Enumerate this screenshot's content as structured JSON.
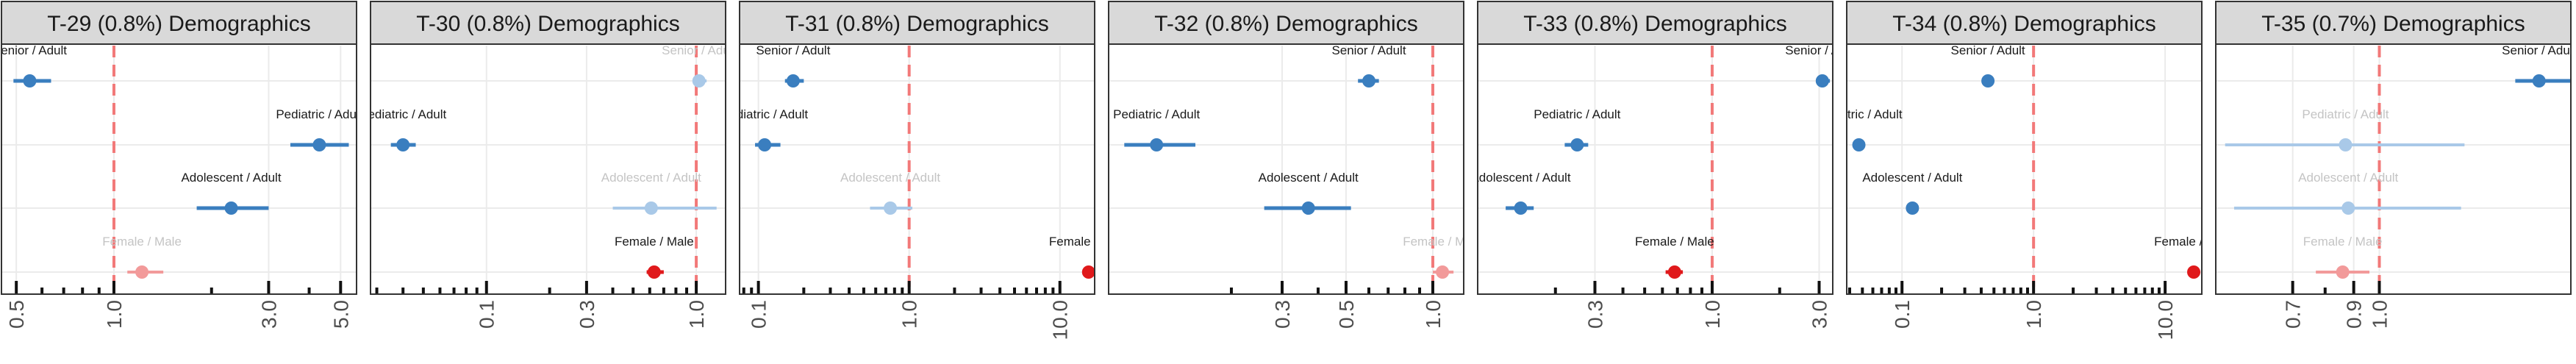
{
  "chart_data": [
    {
      "type": "scatter",
      "title": "T-29 (0.8%) Demographics",
      "x_scale": "log",
      "xlim": [
        0.45,
        5.6
      ],
      "reference_line": 1.0,
      "ticks": [
        {
          "value": 0.5,
          "label": "0.5"
        },
        {
          "value": 1.0,
          "label": "1.0"
        },
        {
          "value": 3.0,
          "label": "3.0"
        },
        {
          "value": 5.0,
          "label": "5.0"
        }
      ],
      "minor_ticks": [
        0.6,
        0.7,
        0.8,
        0.9,
        2,
        4
      ],
      "points": [
        {
          "label": "Senior / Adult",
          "est": 0.55,
          "lo": 0.49,
          "hi": 0.64,
          "color": "#3a7ebf",
          "faded": false
        },
        {
          "label": "Pediatric / Adult",
          "est": 4.3,
          "lo": 3.5,
          "hi": 5.3,
          "color": "#3a7ebf",
          "faded": false
        },
        {
          "label": "Adolescent / Adult",
          "est": 2.3,
          "lo": 1.8,
          "hi": 3.0,
          "color": "#3a7ebf",
          "faded": false
        },
        {
          "label": "Female / Male",
          "est": 1.22,
          "lo": 1.1,
          "hi": 1.42,
          "color": "#f29a9a",
          "faded": true
        }
      ]
    },
    {
      "type": "scatter",
      "title": "T-30 (0.8%) Demographics",
      "x_scale": "log",
      "xlim": [
        0.028,
        1.38
      ],
      "reference_line": 1.0,
      "ticks": [
        {
          "value": 0.1,
          "label": "0.1"
        },
        {
          "value": 0.3,
          "label": "0.3"
        },
        {
          "value": 1.0,
          "label": "1.0"
        }
      ],
      "minor_ticks": [
        0.03,
        0.04,
        0.05,
        0.06,
        0.07,
        0.08,
        0.09,
        0.2,
        0.4,
        0.5,
        0.6,
        0.7,
        0.8,
        0.9
      ],
      "points": [
        {
          "label": "Senior / Adult",
          "est": 1.03,
          "lo": 0.97,
          "hi": 1.12,
          "color": "#a9c9e8",
          "faded": true
        },
        {
          "label": "Pediatric / Adult",
          "est": 0.04,
          "lo": 0.035,
          "hi": 0.046,
          "color": "#3a7ebf",
          "faded": false
        },
        {
          "label": "Adolescent / Adult",
          "est": 0.61,
          "lo": 0.4,
          "hi": 1.25,
          "color": "#a9c9e8",
          "faded": true
        },
        {
          "label": "Female / Male",
          "est": 0.63,
          "lo": 0.58,
          "hi": 0.7,
          "color": "#e0191b",
          "faded": false
        }
      ]
    },
    {
      "type": "scatter",
      "title": "T-31 (0.8%) Demographics",
      "x_scale": "log",
      "xlim": [
        0.075,
        17
      ],
      "reference_line": 1.0,
      "ticks": [
        {
          "value": 0.1,
          "label": "0.1"
        },
        {
          "value": 1.0,
          "label": "1.0"
        },
        {
          "value": 10.0,
          "label": "10.0"
        }
      ],
      "minor_ticks": [
        0.08,
        0.09,
        0.2,
        0.3,
        0.4,
        0.5,
        0.6,
        0.7,
        0.8,
        0.9,
        2,
        3,
        4,
        5,
        6,
        7,
        8,
        9
      ],
      "points": [
        {
          "label": "Senior / Adult",
          "est": 0.17,
          "lo": 0.15,
          "hi": 0.2,
          "color": "#3a7ebf",
          "faded": false
        },
        {
          "label": "Pediatric / Adult",
          "est": 0.11,
          "lo": 0.095,
          "hi": 0.14,
          "color": "#3a7ebf",
          "faded": false
        },
        {
          "label": "Adolescent / Adult",
          "est": 0.75,
          "lo": 0.55,
          "hi": 1.05,
          "color": "#a9c9e8",
          "faded": true
        },
        {
          "label": "Female / Male",
          "est": 15.5,
          "lo": 15.5,
          "hi": 15.5,
          "color": "#e0191b",
          "faded": false
        }
      ]
    },
    {
      "type": "scatter",
      "title": "T-32 (0.8%) Demographics",
      "x_scale": "log",
      "xlim": [
        0.075,
        1.28
      ],
      "reference_line": 1.0,
      "ticks": [
        {
          "value": 0.3,
          "label": "0.3"
        },
        {
          "value": 0.5,
          "label": "0.5"
        },
        {
          "value": 1.0,
          "label": "1.0"
        }
      ],
      "minor_ticks": [
        0.2,
        0.4,
        0.6,
        0.7,
        0.8,
        0.9
      ],
      "points": [
        {
          "label": "Senior / Adult",
          "est": 0.6,
          "lo": 0.55,
          "hi": 0.65,
          "color": "#3a7ebf",
          "faded": false
        },
        {
          "label": "Pediatric / Adult",
          "est": 0.11,
          "lo": 0.085,
          "hi": 0.15,
          "color": "#3a7ebf",
          "faded": false
        },
        {
          "label": "Adolescent / Adult",
          "est": 0.37,
          "lo": 0.26,
          "hi": 0.52,
          "color": "#3a7ebf",
          "faded": false
        },
        {
          "label": "Female / Male",
          "est": 1.08,
          "lo": 1.0,
          "hi": 1.18,
          "color": "#f29a9a",
          "faded": true
        }
      ]
    },
    {
      "type": "scatter",
      "title": "T-33 (0.8%) Demographics",
      "x_scale": "log",
      "xlim": [
        0.09,
        3.45
      ],
      "reference_line": 1.0,
      "ticks": [
        {
          "value": 0.3,
          "label": "0.3"
        },
        {
          "value": 1.0,
          "label": "1.0"
        },
        {
          "value": 3.0,
          "label": "3.0"
        }
      ],
      "minor_ticks": [
        0.2,
        0.4,
        0.5,
        0.6,
        0.7,
        0.8,
        0.9,
        2
      ],
      "points": [
        {
          "label": "Senior / Adult",
          "est": 3.1,
          "lo": 2.9,
          "hi": 3.35,
          "color": "#3a7ebf",
          "faded": false
        },
        {
          "label": "Pediatric / Adult",
          "est": 0.25,
          "lo": 0.22,
          "hi": 0.28,
          "color": "#3a7ebf",
          "faded": false
        },
        {
          "label": "Adolescent / Adult",
          "est": 0.14,
          "lo": 0.12,
          "hi": 0.16,
          "color": "#3a7ebf",
          "faded": false
        },
        {
          "label": "Female / Male",
          "est": 0.68,
          "lo": 0.62,
          "hi": 0.74,
          "color": "#e0191b",
          "faded": false
        }
      ]
    },
    {
      "type": "scatter",
      "title": "T-34 (0.8%) Demographics",
      "x_scale": "log",
      "xlim": [
        0.038,
        19
      ],
      "reference_line": 1.0,
      "ticks": [
        {
          "value": 0.1,
          "label": "0.1"
        },
        {
          "value": 1.0,
          "label": "1.0"
        },
        {
          "value": 10.0,
          "label": "10.0"
        }
      ],
      "minor_ticks": [
        0.04,
        0.05,
        0.06,
        0.07,
        0.08,
        0.09,
        0.2,
        0.3,
        0.4,
        0.5,
        0.6,
        0.7,
        0.8,
        0.9,
        2,
        3,
        4,
        5,
        6,
        7,
        8,
        9
      ],
      "points": [
        {
          "label": "Senior / Adult",
          "est": 0.45,
          "lo": 0.45,
          "hi": 0.45,
          "color": "#3a7ebf",
          "faded": false
        },
        {
          "label": "Pediatric / Adult",
          "est": 0.047,
          "lo": 0.044,
          "hi": 0.05,
          "color": "#3a7ebf",
          "faded": false
        },
        {
          "label": "Adolescent / Adult",
          "est": 0.12,
          "lo": 0.115,
          "hi": 0.125,
          "color": "#3a7ebf",
          "faded": false
        },
        {
          "label": "Female / Male",
          "est": 16.5,
          "lo": 15.5,
          "hi": 17.5,
          "color": "#e0191b",
          "faded": false
        }
      ]
    },
    {
      "type": "scatter",
      "title": "T-35 (0.7%) Demographics",
      "x_scale": "log",
      "xlim": [
        0.51,
        2.2
      ],
      "reference_line": 1.0,
      "ticks": [
        {
          "value": 0.7,
          "label": "0.7"
        },
        {
          "value": 0.9,
          "label": "0.9"
        },
        {
          "value": 1.0,
          "label": "1.0"
        }
      ],
      "minor_ticks": [
        0.8
      ],
      "points": [
        {
          "label": "Senior / Adult",
          "est": 1.93,
          "lo": 1.75,
          "hi": 2.2,
          "color": "#3a7ebf",
          "faded": false
        },
        {
          "label": "Pediatric / Adult",
          "est": 0.87,
          "lo": 0.53,
          "hi": 1.42,
          "color": "#a9c9e8",
          "faded": true
        },
        {
          "label": "Adolescent / Adult",
          "est": 0.88,
          "lo": 0.55,
          "hi": 1.4,
          "color": "#a9c9e8",
          "faded": true
        },
        {
          "label": "Female / Male",
          "est": 0.86,
          "lo": 0.77,
          "hi": 0.96,
          "color": "#f29a9a",
          "faded": true
        }
      ]
    }
  ]
}
